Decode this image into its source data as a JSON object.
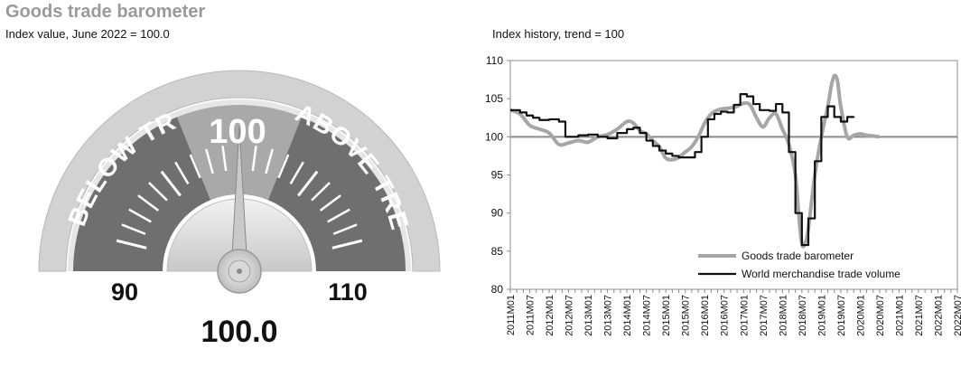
{
  "header": {
    "title": "Goods trade barometer",
    "left_subtitle": "Index value, June 2022 = 100.0",
    "right_subtitle": "Index history, trend = 100"
  },
  "gauge": {
    "value": 100.0,
    "value_label": "100.0",
    "center_label": "100",
    "min_label": "90",
    "max_label": "110",
    "below_label": "BELOW TREND",
    "above_label": "ABOVE TREND",
    "min": 90,
    "max": 110
  },
  "chart_data": {
    "type": "line",
    "ylim": [
      80,
      110
    ],
    "yticks": [
      80,
      85,
      90,
      95,
      100,
      105,
      110
    ],
    "x_ticks": [
      "2011M01",
      "2011M07",
      "2012M01",
      "2012M07",
      "2013M01",
      "2013M07",
      "2014M01",
      "2014M07",
      "2015M01",
      "2015M07",
      "2016M01",
      "2016M07",
      "2017M01",
      "2017M07",
      "2018M01",
      "2018M07",
      "2019M01",
      "2019M07",
      "2020M01",
      "2020M07",
      "2021M01",
      "2021M07",
      "2022M01",
      "2022M07"
    ],
    "trend_line": 100,
    "legend_position": "bottom-right",
    "series": [
      {
        "name": "Goods trade barometer",
        "color": "#a6a6a6",
        "style": "smooth",
        "points": [
          [
            0,
            103.5
          ],
          [
            3,
            103
          ],
          [
            6,
            101.5
          ],
          [
            9,
            101
          ],
          [
            12,
            100.5
          ],
          [
            15,
            99
          ],
          [
            18,
            99.2
          ],
          [
            21,
            99.5
          ],
          [
            24,
            99.3
          ],
          [
            27,
            100
          ],
          [
            30,
            100.3
          ],
          [
            33,
            101
          ],
          [
            36,
            102
          ],
          [
            38,
            101.8
          ],
          [
            40,
            100.8
          ],
          [
            42,
            100.4
          ],
          [
            44,
            99.5
          ],
          [
            46,
            98.7
          ],
          [
            48,
            97.2
          ],
          [
            50,
            97
          ],
          [
            52,
            97.3
          ],
          [
            54,
            98
          ],
          [
            56,
            98.7
          ],
          [
            58,
            100
          ],
          [
            60,
            101.8
          ],
          [
            62,
            103
          ],
          [
            64,
            103.5
          ],
          [
            66,
            103.7
          ],
          [
            68,
            103.8
          ],
          [
            70,
            104
          ],
          [
            72,
            104.4
          ],
          [
            74,
            104.2
          ],
          [
            76,
            102.5
          ],
          [
            78,
            101.3
          ],
          [
            80,
            102.5
          ],
          [
            82,
            103
          ],
          [
            84,
            101
          ],
          [
            86,
            99
          ],
          [
            88,
            95
          ],
          [
            89,
            90
          ],
          [
            90,
            86
          ],
          [
            91,
            86
          ],
          [
            92,
            88
          ],
          [
            94,
            95
          ],
          [
            96,
            100
          ],
          [
            98,
            104
          ],
          [
            99,
            106.5
          ],
          [
            100,
            108
          ],
          [
            101,
            107.3
          ],
          [
            102,
            104
          ],
          [
            104,
            100
          ],
          [
            106,
            100.2
          ],
          [
            108,
            100.4
          ],
          [
            110,
            100.2
          ],
          [
            114,
            100
          ]
        ]
      },
      {
        "name": "World merchandise trade volume",
        "color": "#111111",
        "style": "step",
        "points": [
          [
            0,
            103.5
          ],
          [
            3,
            103.2
          ],
          [
            5,
            102.8
          ],
          [
            7,
            102.5
          ],
          [
            9,
            102.2
          ],
          [
            12,
            102.3
          ],
          [
            15,
            102
          ],
          [
            17,
            100
          ],
          [
            21,
            100.2
          ],
          [
            24,
            100.3
          ],
          [
            27,
            100
          ],
          [
            30,
            99.8
          ],
          [
            33,
            100.5
          ],
          [
            36,
            101
          ],
          [
            38,
            101.2
          ],
          [
            40,
            100.5
          ],
          [
            42,
            99.5
          ],
          [
            44,
            98.8
          ],
          [
            46,
            98.2
          ],
          [
            48,
            97.8
          ],
          [
            50,
            97.5
          ],
          [
            52,
            97.3
          ],
          [
            55,
            97.3
          ],
          [
            57,
            98
          ],
          [
            59,
            100
          ],
          [
            61,
            102.3
          ],
          [
            63,
            103
          ],
          [
            65,
            103.3
          ],
          [
            67,
            103.2
          ],
          [
            69,
            104.2
          ],
          [
            71,
            105.6
          ],
          [
            73,
            105.3
          ],
          [
            75,
            104.3
          ],
          [
            77,
            103.5
          ],
          [
            80,
            103.4
          ],
          [
            82,
            104.3
          ],
          [
            84,
            103.2
          ],
          [
            86,
            98
          ],
          [
            88,
            90
          ],
          [
            90,
            85.8
          ],
          [
            92,
            89.3
          ],
          [
            94,
            96.8
          ],
          [
            96,
            102.6
          ],
          [
            98,
            104
          ],
          [
            100,
            102.6
          ],
          [
            102,
            102
          ],
          [
            104,
            102.6
          ],
          [
            106,
            102.7
          ]
        ]
      }
    ]
  }
}
